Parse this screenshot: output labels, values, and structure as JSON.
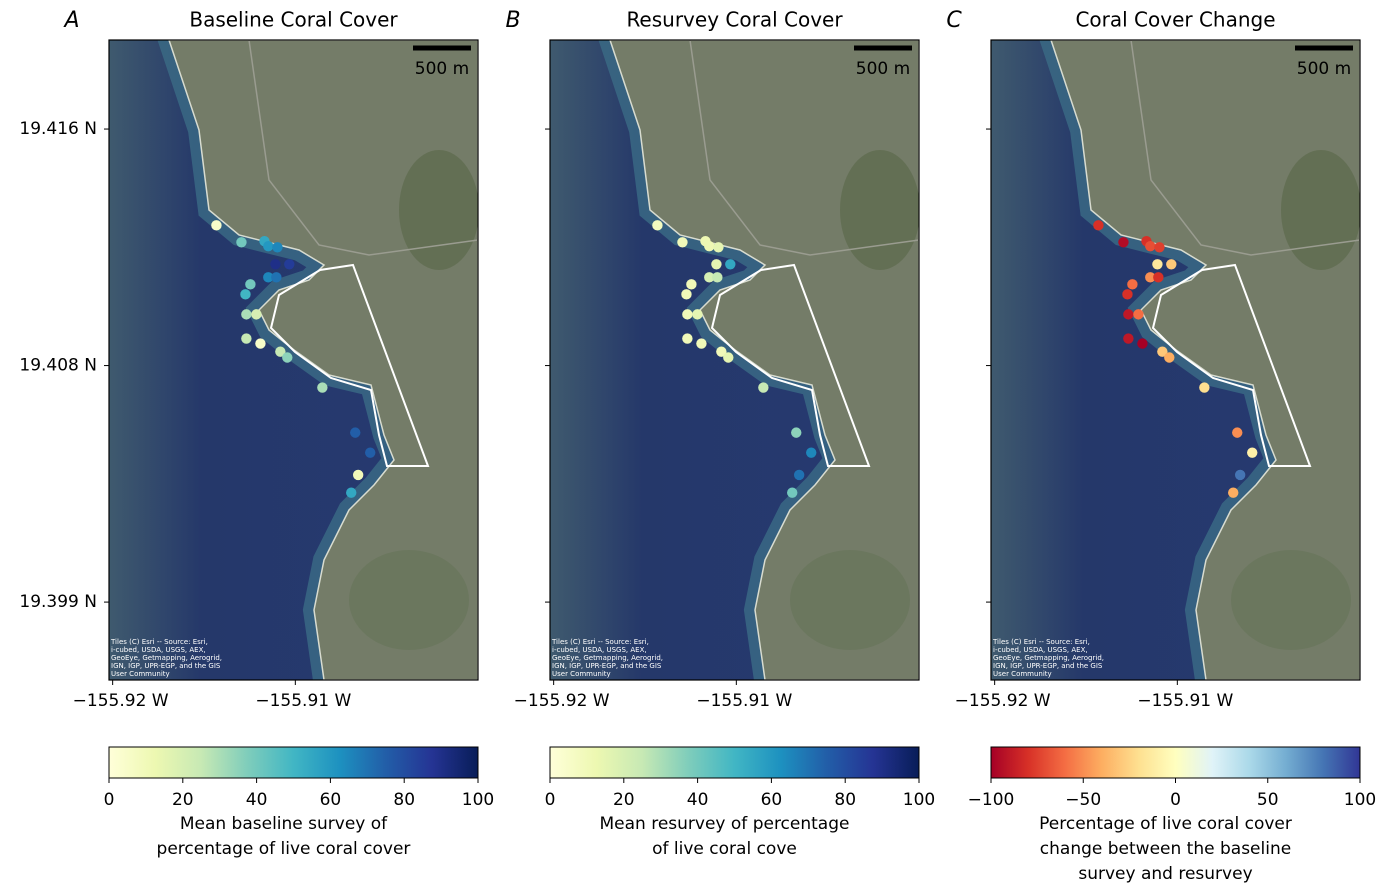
{
  "chart_data": [
    {
      "type": "scatter",
      "panel_label": "A",
      "title": "Baseline Coral Cover",
      "scale_bar": "500 m",
      "attribution": [
        "Tiles (C) Esri -- Source: Esri,",
        "i-cubed, USDA, USGS, AEX,",
        "GeoEye, Getmapping, Aerogrid,",
        "IGN, IGP, UPR-EGP, and the GIS",
        "User Community"
      ],
      "x": [
        -155.91432,
        -155.91295,
        -155.91169,
        -155.91148,
        -155.91098,
        -155.91109,
        -155.91033,
        -155.91148,
        -155.91104,
        -155.91246,
        -155.91273,
        -155.91268,
        -155.91213,
        -155.91268,
        -155.91191,
        -155.91082,
        -155.91044,
        -155.90852,
        -155.90672,
        -155.9059,
        -155.90656,
        -155.90694
      ],
      "y": [
        19.41254,
        19.41193,
        19.41197,
        19.41179,
        19.41175,
        19.41114,
        19.41114,
        19.41067,
        19.41067,
        19.41042,
        19.41006,
        19.40934,
        19.40934,
        19.40847,
        19.40829,
        19.408,
        19.40779,
        19.40671,
        19.40509,
        19.40437,
        19.40357,
        19.40293
      ],
      "values": [
        5,
        40,
        55,
        60,
        65,
        90,
        85,
        65,
        70,
        40,
        50,
        30,
        20,
        25,
        5,
        25,
        35,
        30,
        75,
        75,
        10,
        55
      ],
      "xlim": [
        -155.9202,
        -155.9
      ],
      "ylim": [
        19.3962,
        19.4192
      ],
      "xticks": [
        {
          "value": -155.92,
          "label": "−155.92 W"
        },
        {
          "value": -155.91,
          "label": "−155.91 W"
        }
      ],
      "yticks": [
        {
          "value": 19.416,
          "label": "19.416 N"
        },
        {
          "value": 19.4075,
          "label": "19.408 N"
        },
        {
          "value": 19.399,
          "label": "19.399 N"
        }
      ],
      "colormap": [
        "#ffffd9",
        "#edf8b1",
        "#c7e9b4",
        "#7fcdbb",
        "#41b6c4",
        "#1d91c0",
        "#225ea8",
        "#253494",
        "#081d58"
      ],
      "clim": [
        0,
        100
      ],
      "cticks": [
        0,
        20,
        40,
        60,
        80,
        100
      ],
      "cbar_label": [
        "Mean baseline survey of",
        "percentage of live coral cover"
      ]
    },
    {
      "type": "scatter",
      "panel_label": "B",
      "title": "Resurvey Coral Cover",
      "scale_bar": "500 m",
      "attribution": [
        "Tiles (C) Esri -- Source: Esri,",
        "i-cubed, USDA, USGS, AEX,",
        "GeoEye, Getmapping, Aerogrid,",
        "IGN, IGP, UPR-EGP, and the GIS",
        "User Community"
      ],
      "x": [
        -155.91432,
        -155.91295,
        -155.91169,
        -155.91148,
        -155.91098,
        -155.91109,
        -155.91033,
        -155.91148,
        -155.91104,
        -155.91246,
        -155.91273,
        -155.91268,
        -155.91213,
        -155.91268,
        -155.91191,
        -155.91082,
        -155.91044,
        -155.90852,
        -155.90672,
        -155.9059,
        -155.90656,
        -155.90694
      ],
      "y": [
        19.41254,
        19.41193,
        19.41197,
        19.41179,
        19.41175,
        19.41114,
        19.41114,
        19.41067,
        19.41067,
        19.41042,
        19.41006,
        19.40934,
        19.40934,
        19.40847,
        19.40829,
        19.408,
        19.40779,
        19.40671,
        19.40509,
        19.40437,
        19.40357,
        19.40293
      ],
      "values": [
        8,
        10,
        12,
        12,
        15,
        15,
        55,
        20,
        25,
        10,
        10,
        10,
        15,
        10,
        10,
        10,
        15,
        25,
        35,
        65,
        70,
        40
      ],
      "xlim": [
        -155.9202,
        -155.9
      ],
      "ylim": [
        19.3962,
        19.4192
      ],
      "xticks": [
        {
          "value": -155.92,
          "label": "−155.92 W"
        },
        {
          "value": -155.91,
          "label": "−155.91 W"
        }
      ],
      "colormap": [
        "#ffffd9",
        "#edf8b1",
        "#c7e9b4",
        "#7fcdbb",
        "#41b6c4",
        "#1d91c0",
        "#225ea8",
        "#253494",
        "#081d58"
      ],
      "clim": [
        0,
        100
      ],
      "cticks": [
        0,
        20,
        40,
        60,
        80,
        100
      ],
      "cbar_label": [
        "Mean resurvey of percentage",
        "of live coral cove"
      ]
    },
    {
      "type": "scatter",
      "panel_label": "C",
      "title": "Coral Cover Change",
      "scale_bar": "500 m",
      "attribution": [
        "Tiles (C) Esri -- Source: Esri,",
        "i-cubed, USDA, USGS, AEX,",
        "GeoEye, Getmapping, Aerogrid,",
        "IGN, IGP, UPR-EGP, and the GIS",
        "User Community"
      ],
      "x": [
        -155.91432,
        -155.91295,
        -155.91169,
        -155.91148,
        -155.91098,
        -155.91109,
        -155.91033,
        -155.91148,
        -155.91104,
        -155.91246,
        -155.91273,
        -155.91268,
        -155.91213,
        -155.91268,
        -155.91191,
        -155.91082,
        -155.91044,
        -155.90852,
        -155.90672,
        -155.9059,
        -155.90656,
        -155.90694
      ],
      "y": [
        19.41254,
        19.41193,
        19.41197,
        19.41179,
        19.41175,
        19.41114,
        19.41114,
        19.41067,
        19.41067,
        19.41042,
        19.41006,
        19.40934,
        19.40934,
        19.40847,
        19.40829,
        19.408,
        19.40779,
        19.40671,
        19.40509,
        19.40437,
        19.40357,
        19.40293
      ],
      "values": [
        -80,
        -95,
        -80,
        -70,
        -75,
        -15,
        -30,
        -50,
        -80,
        -60,
        -80,
        -90,
        -60,
        -90,
        -100,
        -30,
        -40,
        -20,
        -50,
        -10,
        80,
        -40
      ],
      "xlim": [
        -155.9202,
        -155.9
      ],
      "ylim": [
        19.3962,
        19.4192
      ],
      "xticks": [
        {
          "value": -155.92,
          "label": "−155.92 W"
        },
        {
          "value": -155.91,
          "label": "−155.91 W"
        }
      ],
      "colormap": [
        "#a50026",
        "#d73027",
        "#f46d43",
        "#fdae61",
        "#fee090",
        "#ffffbf",
        "#e0f3f8",
        "#abd9e9",
        "#74add1",
        "#4575b4",
        "#313695"
      ],
      "clim": [
        -100,
        100
      ],
      "cticks": [
        {
          "value": -100,
          "label": "−100"
        },
        {
          "value": -50,
          "label": "−50"
        },
        0,
        50,
        100
      ],
      "cbar_label": [
        "Percentage of live coral cover",
        "change between the baseline",
        "survey and resurvey"
      ]
    }
  ]
}
